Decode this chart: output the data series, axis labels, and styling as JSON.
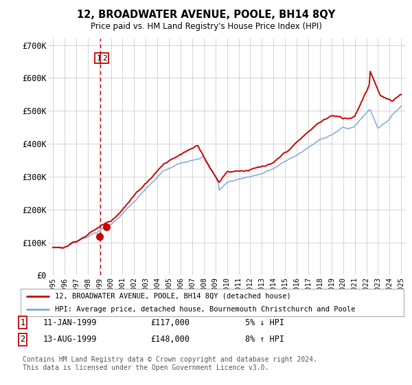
{
  "title": "12, BROADWATER AVENUE, POOLE, BH14 8QY",
  "subtitle": "Price paid vs. HM Land Registry's House Price Index (HPI)",
  "ylim": [
    0,
    720000
  ],
  "yticks": [
    0,
    100000,
    200000,
    300000,
    400000,
    500000,
    600000,
    700000
  ],
  "ytick_labels": [
    "£0",
    "£100K",
    "£200K",
    "£300K",
    "£400K",
    "£500K",
    "£600K",
    "£700K"
  ],
  "hpi_color": "#7ba7d4",
  "price_color": "#cc0000",
  "marker_color": "#cc0000",
  "grid_color": "#cccccc",
  "bg_color": "#ffffff",
  "legend_border_color": "#aaaaaa",
  "transaction1_date": "11-JAN-1999",
  "transaction1_price": "£117,000",
  "transaction1_hpi": "5% ↓ HPI",
  "transaction2_date": "13-AUG-1999",
  "transaction2_price": "£148,000",
  "transaction2_hpi": "8% ↑ HPI",
  "footer": "Contains HM Land Registry data © Crown copyright and database right 2024.\nThis data is licensed under the Open Government Licence v3.0.",
  "legend_line1": "12, BROADWATER AVENUE, POOLE, BH14 8QY (detached house)",
  "legend_line2": "HPI: Average price, detached house, Bournemouth Christchurch and Poole",
  "sale1_x": 1999.03,
  "sale1_y": 117000,
  "sale2_x": 1999.62,
  "sale2_y": 148000,
  "dashed_x": 1999.1,
  "xlim_left": 1994.6,
  "xlim_right": 2025.4
}
